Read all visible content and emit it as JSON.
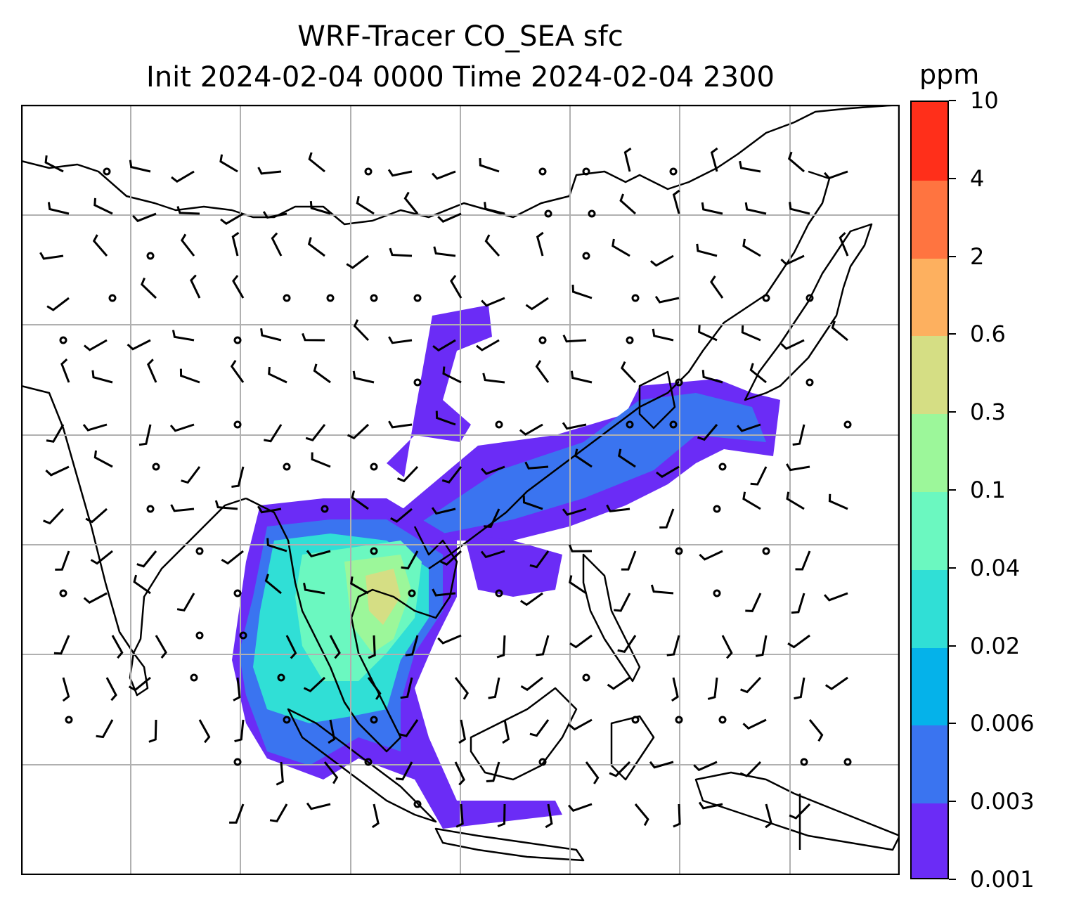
{
  "title": {
    "line1": "WRF-Tracer CO_SEA sfc",
    "line2": "Init 2024-02-04 0000 Time 2024-02-04 2300"
  },
  "colorbar": {
    "unit": "ppm",
    "levels": [
      "0.001",
      "0.003",
      "0.006",
      "0.02",
      "0.04",
      "0.1",
      "0.3",
      "0.6",
      "2",
      "4",
      "10"
    ],
    "colors": [
      "#6b2cf6",
      "#3a74f0",
      "#05b2ea",
      "#30dfd6",
      "#6bf8c0",
      "#9cf79a",
      "#d5de84",
      "#fdb05f",
      "#ff7440",
      "#ff2f1a"
    ]
  },
  "map": {
    "projection_grid": "on",
    "field": "CO_SEA surface tracer concentration",
    "vectors": "wind barbs"
  }
}
